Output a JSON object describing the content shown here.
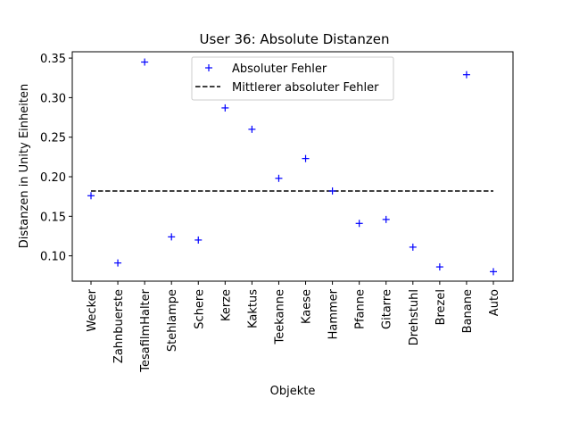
{
  "chart_data": {
    "type": "scatter",
    "title": "User 36: Absolute Distanzen",
    "xlabel": "Objekte",
    "ylabel": "Distanzen in Unity Einheiten",
    "ylim": [
      0.068,
      0.358
    ],
    "yticks": [
      0.1,
      0.15,
      0.2,
      0.25,
      0.3,
      0.35
    ],
    "ytick_labels": [
      "0.10",
      "0.15",
      "0.20",
      "0.25",
      "0.30",
      "0.35"
    ],
    "categories": [
      "Wecker",
      "Zahnbuerste",
      "TesafilmHalter",
      "Stehlampe",
      "Schere",
      "Kerze",
      "Kaktus",
      "Teekanne",
      "Kaese",
      "Hammer",
      "Pfanne",
      "Gitarre",
      "Drehstuhl",
      "Brezel",
      "Banane",
      "Auto"
    ],
    "series": [
      {
        "name": "Absoluter Fehler",
        "marker": "+",
        "color": "#0000ff",
        "values": [
          0.176,
          0.091,
          0.345,
          0.124,
          0.12,
          0.287,
          0.26,
          0.198,
          0.223,
          0.182,
          0.141,
          0.146,
          0.111,
          0.086,
          0.329,
          0.08
        ]
      },
      {
        "name": "Mittlerer absoluter Fehler",
        "style": "dashed",
        "color": "#000000",
        "value": 0.182
      }
    ],
    "legend_position": "top-center",
    "grid": false
  }
}
